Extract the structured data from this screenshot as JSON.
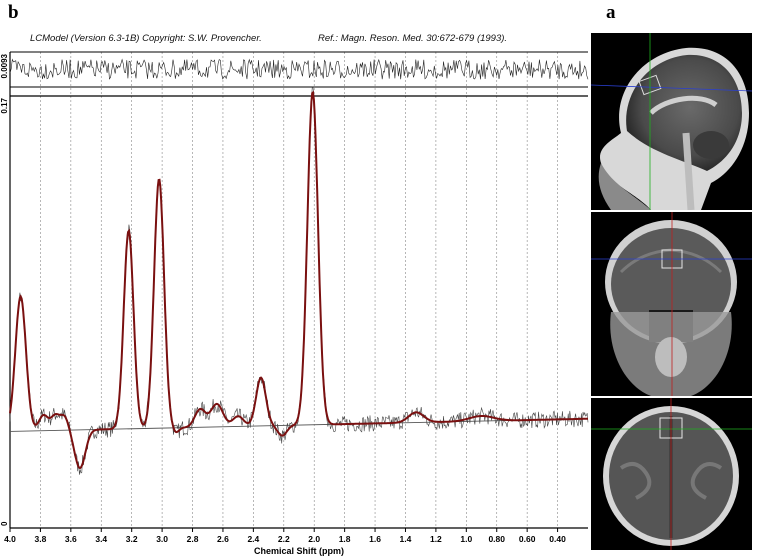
{
  "panel_labels": {
    "left": "b",
    "right": "a"
  },
  "header": {
    "left": "LCModel (Version 6.3-1B) Copyright: S.W. Provencher.",
    "right": "Ref.: Magn. Reson. Med. 30:672-679 (1993)."
  },
  "colors": {
    "fit": "#7a1010",
    "data": "#444444",
    "baseline": "#555555",
    "gridline": "#888888",
    "axis": "#000000"
  },
  "chart_data": {
    "type": "line",
    "xlabel": "Chemical Shift (ppm)",
    "x_reversed": true,
    "xlim": [
      4.0,
      0.2
    ],
    "xticks": [
      "4.0",
      "3.8",
      "3.6",
      "3.4",
      "3.2",
      "3.0",
      "2.8",
      "2.6",
      "2.4",
      "2.2",
      "2.0",
      "1.8",
      "1.6",
      "1.4",
      "1.2",
      "1.0",
      "0.80",
      "0.60",
      "0.40"
    ],
    "main_panel": {
      "ymax_label": "0.17",
      "ymin_label": "0",
      "ylim": [
        0,
        0.17
      ]
    },
    "residual_panel": {
      "ymax_label": "0.0093",
      "label": "residual"
    },
    "baseline": {
      "name": "baseline",
      "x": [
        4.0,
        0.2
      ],
      "y": [
        0.038,
        0.043
      ]
    },
    "peaks": [
      {
        "ppm": 3.93,
        "height": 0.053,
        "width": 0.035
      },
      {
        "ppm": 3.78,
        "height": 0.006,
        "width": 0.03
      },
      {
        "ppm": 3.7,
        "height": 0.006,
        "width": 0.03
      },
      {
        "ppm": 3.64,
        "height": 0.005,
        "width": 0.025
      },
      {
        "ppm": 3.54,
        "height": -0.015,
        "width": 0.035
      },
      {
        "ppm": 3.22,
        "height": 0.078,
        "width": 0.032
      },
      {
        "ppm": 3.02,
        "height": 0.098,
        "width": 0.033
      },
      {
        "ppm": 2.91,
        "height": -0.002,
        "width": 0.02
      },
      {
        "ppm": 2.75,
        "height": 0.007,
        "width": 0.035
      },
      {
        "ppm": 2.64,
        "height": 0.009,
        "width": 0.04
      },
      {
        "ppm": 2.5,
        "height": 0.004,
        "width": 0.035
      },
      {
        "ppm": 2.35,
        "height": 0.019,
        "width": 0.032
      },
      {
        "ppm": 2.21,
        "height": -0.004,
        "width": 0.03
      },
      {
        "ppm": 2.01,
        "height": 0.131,
        "width": 0.035
      },
      {
        "ppm": 1.33,
        "height": 0.004,
        "width": 0.05
      },
      {
        "ppm": 0.9,
        "height": 0.002,
        "width": 0.08
      }
    ]
  },
  "mri_views": [
    {
      "name": "sagittal",
      "crosshair_h": "#2a3fd0",
      "crosshair_v": "#1fb01f"
    },
    {
      "name": "coronal",
      "crosshair_h": "#2a3fd0",
      "crosshair_v": "#c0201f"
    },
    {
      "name": "axial",
      "crosshair_h": "#1fb01f",
      "crosshair_v": "#c0201f"
    }
  ]
}
